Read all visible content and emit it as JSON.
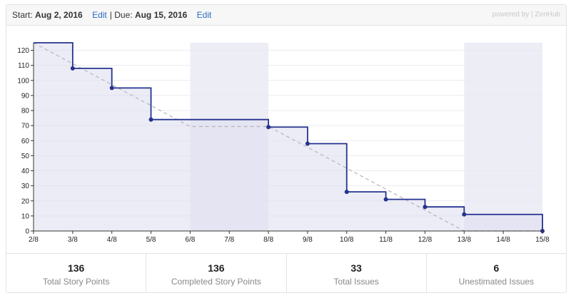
{
  "header": {
    "start_label": "Start:",
    "start_date": "Aug 2, 2016",
    "edit1": "Edit",
    "sep": "|",
    "due_label": "Due:",
    "due_date": "Aug 15, 2016",
    "edit2": "Edit",
    "powered": "powered by | ZenHub"
  },
  "chart_data": {
    "type": "line",
    "title": "",
    "xlabel": "",
    "ylabel": "",
    "categories": [
      "2/8",
      "3/8",
      "4/8",
      "5/8",
      "6/8",
      "7/8",
      "8/8",
      "9/8",
      "10/8",
      "11/8",
      "12/8",
      "13/8",
      "14/8",
      "15/8"
    ],
    "yticks": [
      0,
      10,
      20,
      30,
      40,
      50,
      60,
      70,
      80,
      90,
      100,
      110,
      120
    ],
    "ylim": [
      0,
      125
    ],
    "grid": true,
    "series": [
      {
        "style": "step",
        "color": "#25338f",
        "values": [
          125,
          108,
          95,
          74,
          74,
          74,
          69,
          58,
          26,
          21,
          16,
          11,
          11,
          0
        ],
        "markers": [
          false,
          true,
          true,
          true,
          false,
          false,
          true,
          true,
          true,
          true,
          true,
          true,
          false,
          true
        ]
      },
      {
        "style": "dashed-ideal",
        "color": "#b8b8c4",
        "values": [
          125,
          111.1,
          97.2,
          83.3,
          69.4,
          69.4,
          69.4,
          55.6,
          41.7,
          27.8,
          13.9,
          0,
          0,
          0
        ]
      }
    ],
    "weekends": [
      [
        "6/8",
        "8/8"
      ],
      [
        "13/8",
        "15/8"
      ]
    ]
  },
  "stats": [
    {
      "value": "136",
      "label": "Total Story Points"
    },
    {
      "value": "136",
      "label": "Completed Story Points"
    },
    {
      "value": "33",
      "label": "Total Issues"
    },
    {
      "value": "6",
      "label": "Unestimated Issues"
    }
  ]
}
